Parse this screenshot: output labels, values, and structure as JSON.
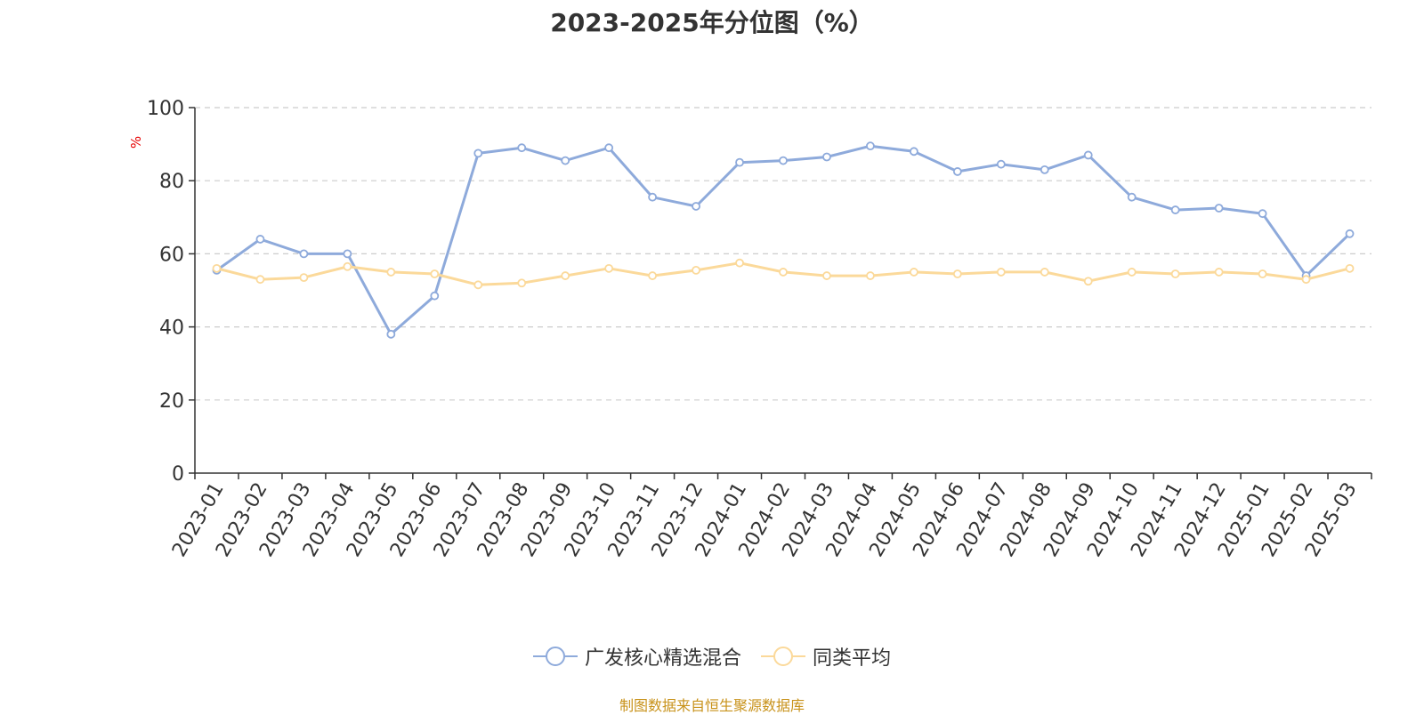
{
  "footer": {
    "source_text": "制图数据来自恒生聚源数据库",
    "color": "#c8921a"
  },
  "chart_data": {
    "type": "line",
    "title": "2023-2025年分位图（%）",
    "ylabel": "%",
    "ylabel_color": "#e60000",
    "ylim": [
      0,
      100
    ],
    "yticks": [
      "0",
      "20",
      "40",
      "60",
      "80",
      "100"
    ],
    "grid": true,
    "legend_position": "bottom-center",
    "categories": [
      "2023-01",
      "2023-02",
      "2023-03",
      "2023-04",
      "2023-05",
      "2023-06",
      "2023-07",
      "2023-08",
      "2023-09",
      "2023-10",
      "2023-11",
      "2023-12",
      "2024-01",
      "2024-02",
      "2024-03",
      "2024-04",
      "2024-05",
      "2024-06",
      "2024-07",
      "2024-08",
      "2024-09",
      "2024-10",
      "2024-11",
      "2024-12",
      "2025-01",
      "2025-02",
      "2025-03"
    ],
    "series": [
      {
        "name": "广发核心精选混合",
        "color": "#8eaadb",
        "values": [
          55.5,
          64,
          60,
          60,
          38,
          48.5,
          87.5,
          89,
          85.5,
          89,
          75.5,
          73,
          85,
          85.5,
          86.5,
          89.5,
          88,
          82.5,
          84.5,
          83,
          87,
          75.5,
          72,
          72.5,
          71,
          54,
          65.5
        ]
      },
      {
        "name": "同类平均",
        "color": "#fbd99a",
        "values": [
          56,
          53,
          53.5,
          56.5,
          55,
          54.5,
          51.5,
          52,
          54,
          56,
          54,
          55.5,
          57.5,
          55,
          54,
          54,
          55,
          54.5,
          55,
          55,
          52.5,
          55,
          54.5,
          55,
          54.5,
          53,
          56
        ]
      }
    ]
  }
}
